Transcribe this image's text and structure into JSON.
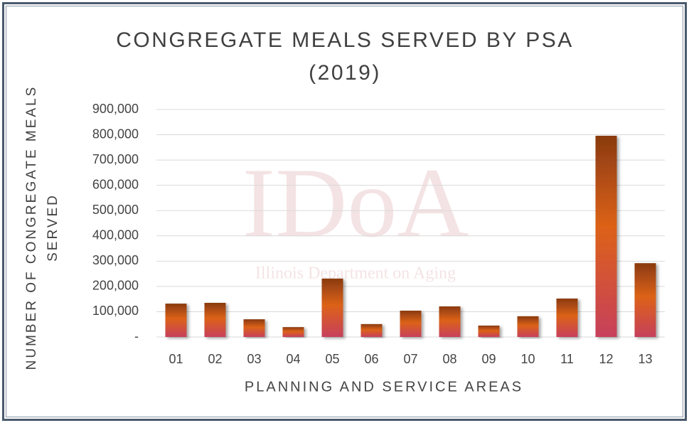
{
  "chart_data": {
    "type": "bar",
    "title": "CONGREGATE MEALS SERVED BY PSA (2019)",
    "xlabel": "PLANNING AND SERVICE AREAS",
    "ylabel": "NUMBER OF CONGREGATE MEALS SERVED",
    "watermark": {
      "logo": "IDoA",
      "caption": "Illinois Department on Aging"
    },
    "categories": [
      "01",
      "02",
      "03",
      "04",
      "05",
      "06",
      "07",
      "08",
      "09",
      "10",
      "11",
      "12",
      "13"
    ],
    "values": [
      132000,
      135000,
      70000,
      39000,
      231000,
      51000,
      104000,
      121000,
      45000,
      82000,
      152000,
      796000,
      292000
    ],
    "ylim": [
      0,
      900000
    ],
    "yticks": [
      {
        "value": 0,
        "label": "-"
      },
      {
        "value": 100000,
        "label": "100,000"
      },
      {
        "value": 200000,
        "label": "200,000"
      },
      {
        "value": 300000,
        "label": "300,000"
      },
      {
        "value": 400000,
        "label": "400,000"
      },
      {
        "value": 500000,
        "label": "500,000"
      },
      {
        "value": 600000,
        "label": "600,000"
      },
      {
        "value": 700000,
        "label": "700,000"
      },
      {
        "value": 800000,
        "label": "800,000"
      },
      {
        "value": 900000,
        "label": "900,000"
      }
    ],
    "grid": true
  }
}
